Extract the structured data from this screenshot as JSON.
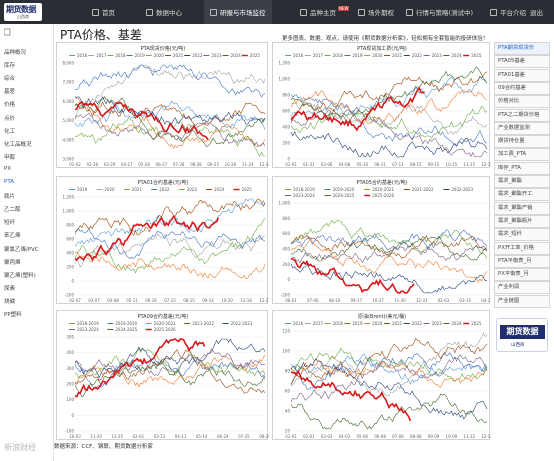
{
  "app": {
    "logo_main": "期货数据",
    "logo_sub": "山西商"
  },
  "nav": [
    {
      "label": "首页"
    },
    {
      "label": "数据中心"
    },
    {
      "label": "研报与市场监控"
    },
    {
      "label": "品种主页",
      "badge": "NEW"
    },
    {
      "label": "场外期权"
    },
    {
      "label": "行情与策略(测试中)"
    },
    {
      "label": "平台介绍"
    },
    {
      "label": "退出"
    }
  ],
  "sidebar": {
    "items": [
      "品种概况",
      "库存",
      "综合",
      "基差",
      "价格",
      "点价",
      "化工",
      "化工品概况",
      "甲醇",
      "PX",
      "PTA",
      "瓶片",
      "乙二醇",
      "短纤",
      "苯乙烯",
      "聚氯乙烯/PVC",
      "聚丙烯",
      "聚乙烯(塑料)",
      "尿素",
      "烧碱",
      "PP塑料"
    ]
  },
  "page": {
    "title": "PTA价格、基差",
    "notice": "更多图表、数据、观点，请使用《期货数据分析家》，轻松拥有全套智能的投研体验！"
  },
  "charts": [
    {
      "title": "PTA现货价格(元/吨)",
      "legend": [
        "2016",
        "2017",
        "2018",
        "2019",
        "2020",
        "2021",
        "2022",
        "2023",
        "2024",
        "2025"
      ],
      "x_ticks": [
        "01-02",
        "02-28",
        "03-29",
        "04-27",
        "05-28",
        "06-27",
        "07-28",
        "08-28",
        "09-25",
        "10-26",
        "11-24",
        "12-24"
      ],
      "y_ticks": [
        "8,000",
        "7,000",
        "6,000",
        "5,000",
        "4,000",
        "3,000"
      ]
    },
    {
      "title": "PTA现货加工费(元/吨)",
      "legend": [
        "2016",
        "2017",
        "2018",
        "2019",
        "2020",
        "2021",
        "2022",
        "2023",
        "2024",
        "2025"
      ],
      "x_ticks": [
        "01-01",
        "01-31",
        "03-06",
        "04-08",
        "05-10",
        "06-11",
        "07-11",
        "08-15",
        "09-15",
        "10-15",
        "11-15",
        "12-15"
      ],
      "y_ticks": [
        "1,200",
        "1,000",
        "800",
        "600",
        "400",
        "200",
        "0"
      ]
    },
    {
      "title": "PTA01合约基差(元/吨)",
      "legend": [
        "2019",
        "2020",
        "2021",
        "2022",
        "2023",
        "2024",
        "2025"
      ],
      "x_ticks": [
        "02-07",
        "03-07",
        "04-08",
        "05-11",
        "06-16",
        "07-15",
        "08-15",
        "09-14",
        "10-20",
        "11-18",
        "12-27"
      ],
      "y_ticks": [
        "1,200",
        "1,000",
        "800",
        "600",
        "400",
        "200",
        "0",
        "-200"
      ]
    },
    {
      "title": "PTA05合约基差(元/吨)",
      "legend": [
        "2018-2019",
        "2019-2020",
        "2020-2021",
        "2021-2022",
        "2022-2023",
        "2023-2024",
        "2024-2025",
        "2025-2026"
      ],
      "x_ticks": [
        "06-01",
        "07-06",
        "08-10",
        "09-17",
        "10-27",
        "11-30",
        "12-31",
        "02-03",
        "03-15",
        "04-17"
      ],
      "y_ticks": [
        "1,000",
        "800",
        "600",
        "400",
        "200",
        "0",
        "-200"
      ]
    },
    {
      "title": "PTA09合约基差(元/吨)",
      "legend": [
        "2018-2019",
        "2019-2020",
        "2020-2021",
        "2021-2022",
        "2022-2023",
        "2023-2024",
        "2024-2025",
        "2025-2026"
      ],
      "x_ticks": [
        "10-03",
        "11-20",
        "12-25",
        "02-01",
        "03-13",
        "04-11",
        "05-14",
        "06-24",
        "07-25",
        "08-29"
      ],
      "y_ticks": [
        "500",
        "400",
        "300",
        "200",
        "100",
        "0",
        "-100"
      ]
    },
    {
      "title": "原油(Brent)(美元/桶)",
      "legend": [
        "2016",
        "2017",
        "2018",
        "2019",
        "2020",
        "2021",
        "2022",
        "2023",
        "2024",
        "2025"
      ],
      "x_ticks": [
        "01-01",
        "02-01",
        "03-03",
        "04-03",
        "05-06",
        "06-08",
        "07-08",
        "08-08",
        "09-09",
        "10-09",
        "11-12",
        "12-14"
      ],
      "y_ticks": [
        "120",
        "100",
        "80",
        "60",
        "40",
        "20"
      ]
    }
  ],
  "right_nav": [
    "PTA期货现货价",
    "PTA05基差",
    "PTA01基差",
    "09合约基差",
    "价格对比",
    "PTA之二期货价格",
    "产业数据监测",
    "期货持仓量",
    "加工费_PTA",
    "库存_PTA",
    "需求_聚酯",
    "需求_聚酯开工",
    "需求_聚酯产销",
    "需求_聚酯瓶片",
    "需求_短纤",
    "PX开工率_价格",
    "PTA平衡表_月",
    "PX平衡表_月",
    "产业利润",
    "产业链图"
  ],
  "promo": {
    "title": "期货数据",
    "sub": "山西商"
  },
  "footer": {
    "source": "数据来源：CCF、钢联、期货数据分析家",
    "watermark": "新浪财经"
  },
  "colors": {
    "topbar": "#2a2d33",
    "accent": "#2260c8",
    "highlight_series": "#d7191c"
  }
}
